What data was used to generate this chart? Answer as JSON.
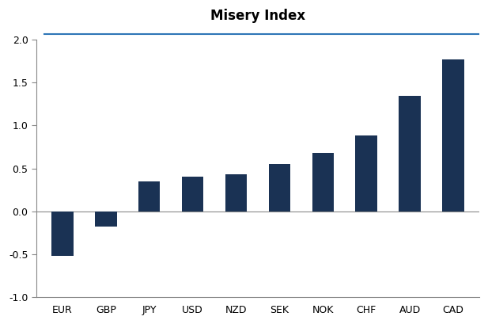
{
  "title": "Misery Index",
  "categories": [
    "EUR",
    "GBP",
    "JPY",
    "USD",
    "NZD",
    "SEK",
    "NOK",
    "CHF",
    "AUD",
    "CAD"
  ],
  "values": [
    -0.52,
    -0.18,
    0.35,
    0.4,
    0.43,
    0.55,
    0.68,
    0.88,
    1.35,
    1.77
  ],
  "bar_color": "#1a3254",
  "ylim": [
    -1.0,
    2.0
  ],
  "yticks": [
    -1.0,
    -0.5,
    0.0,
    0.5,
    1.0,
    1.5,
    2.0
  ],
  "background_color": "#ffffff",
  "title_fontsize": 12,
  "title_fontweight": "bold",
  "tick_fontsize": 9,
  "bar_width": 0.5,
  "title_line_color": "#2e75b6",
  "spine_color": "#888888",
  "zero_line_color": "#888888"
}
